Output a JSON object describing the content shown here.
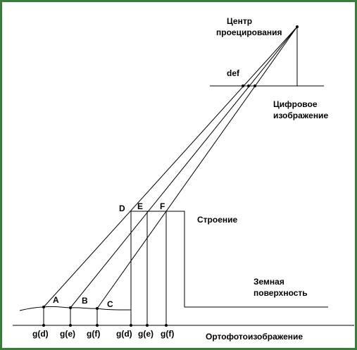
{
  "labels": {
    "center": [
      "Центр",
      "проецирования"
    ],
    "image_point": "def",
    "digital_image": [
      "Цифровое",
      "изображение"
    ],
    "roof_points": [
      "D",
      "E",
      "F"
    ],
    "building": "Строение",
    "ground_points": [
      "A",
      "B",
      "C"
    ],
    "ground": [
      "Земная",
      "поверхность"
    ],
    "ortho_points": [
      "g(d)",
      "g(e)",
      "g(f)",
      "g(d)",
      "g(e)",
      "g(f)"
    ],
    "orthophoto": "Ортофотоизображение"
  }
}
